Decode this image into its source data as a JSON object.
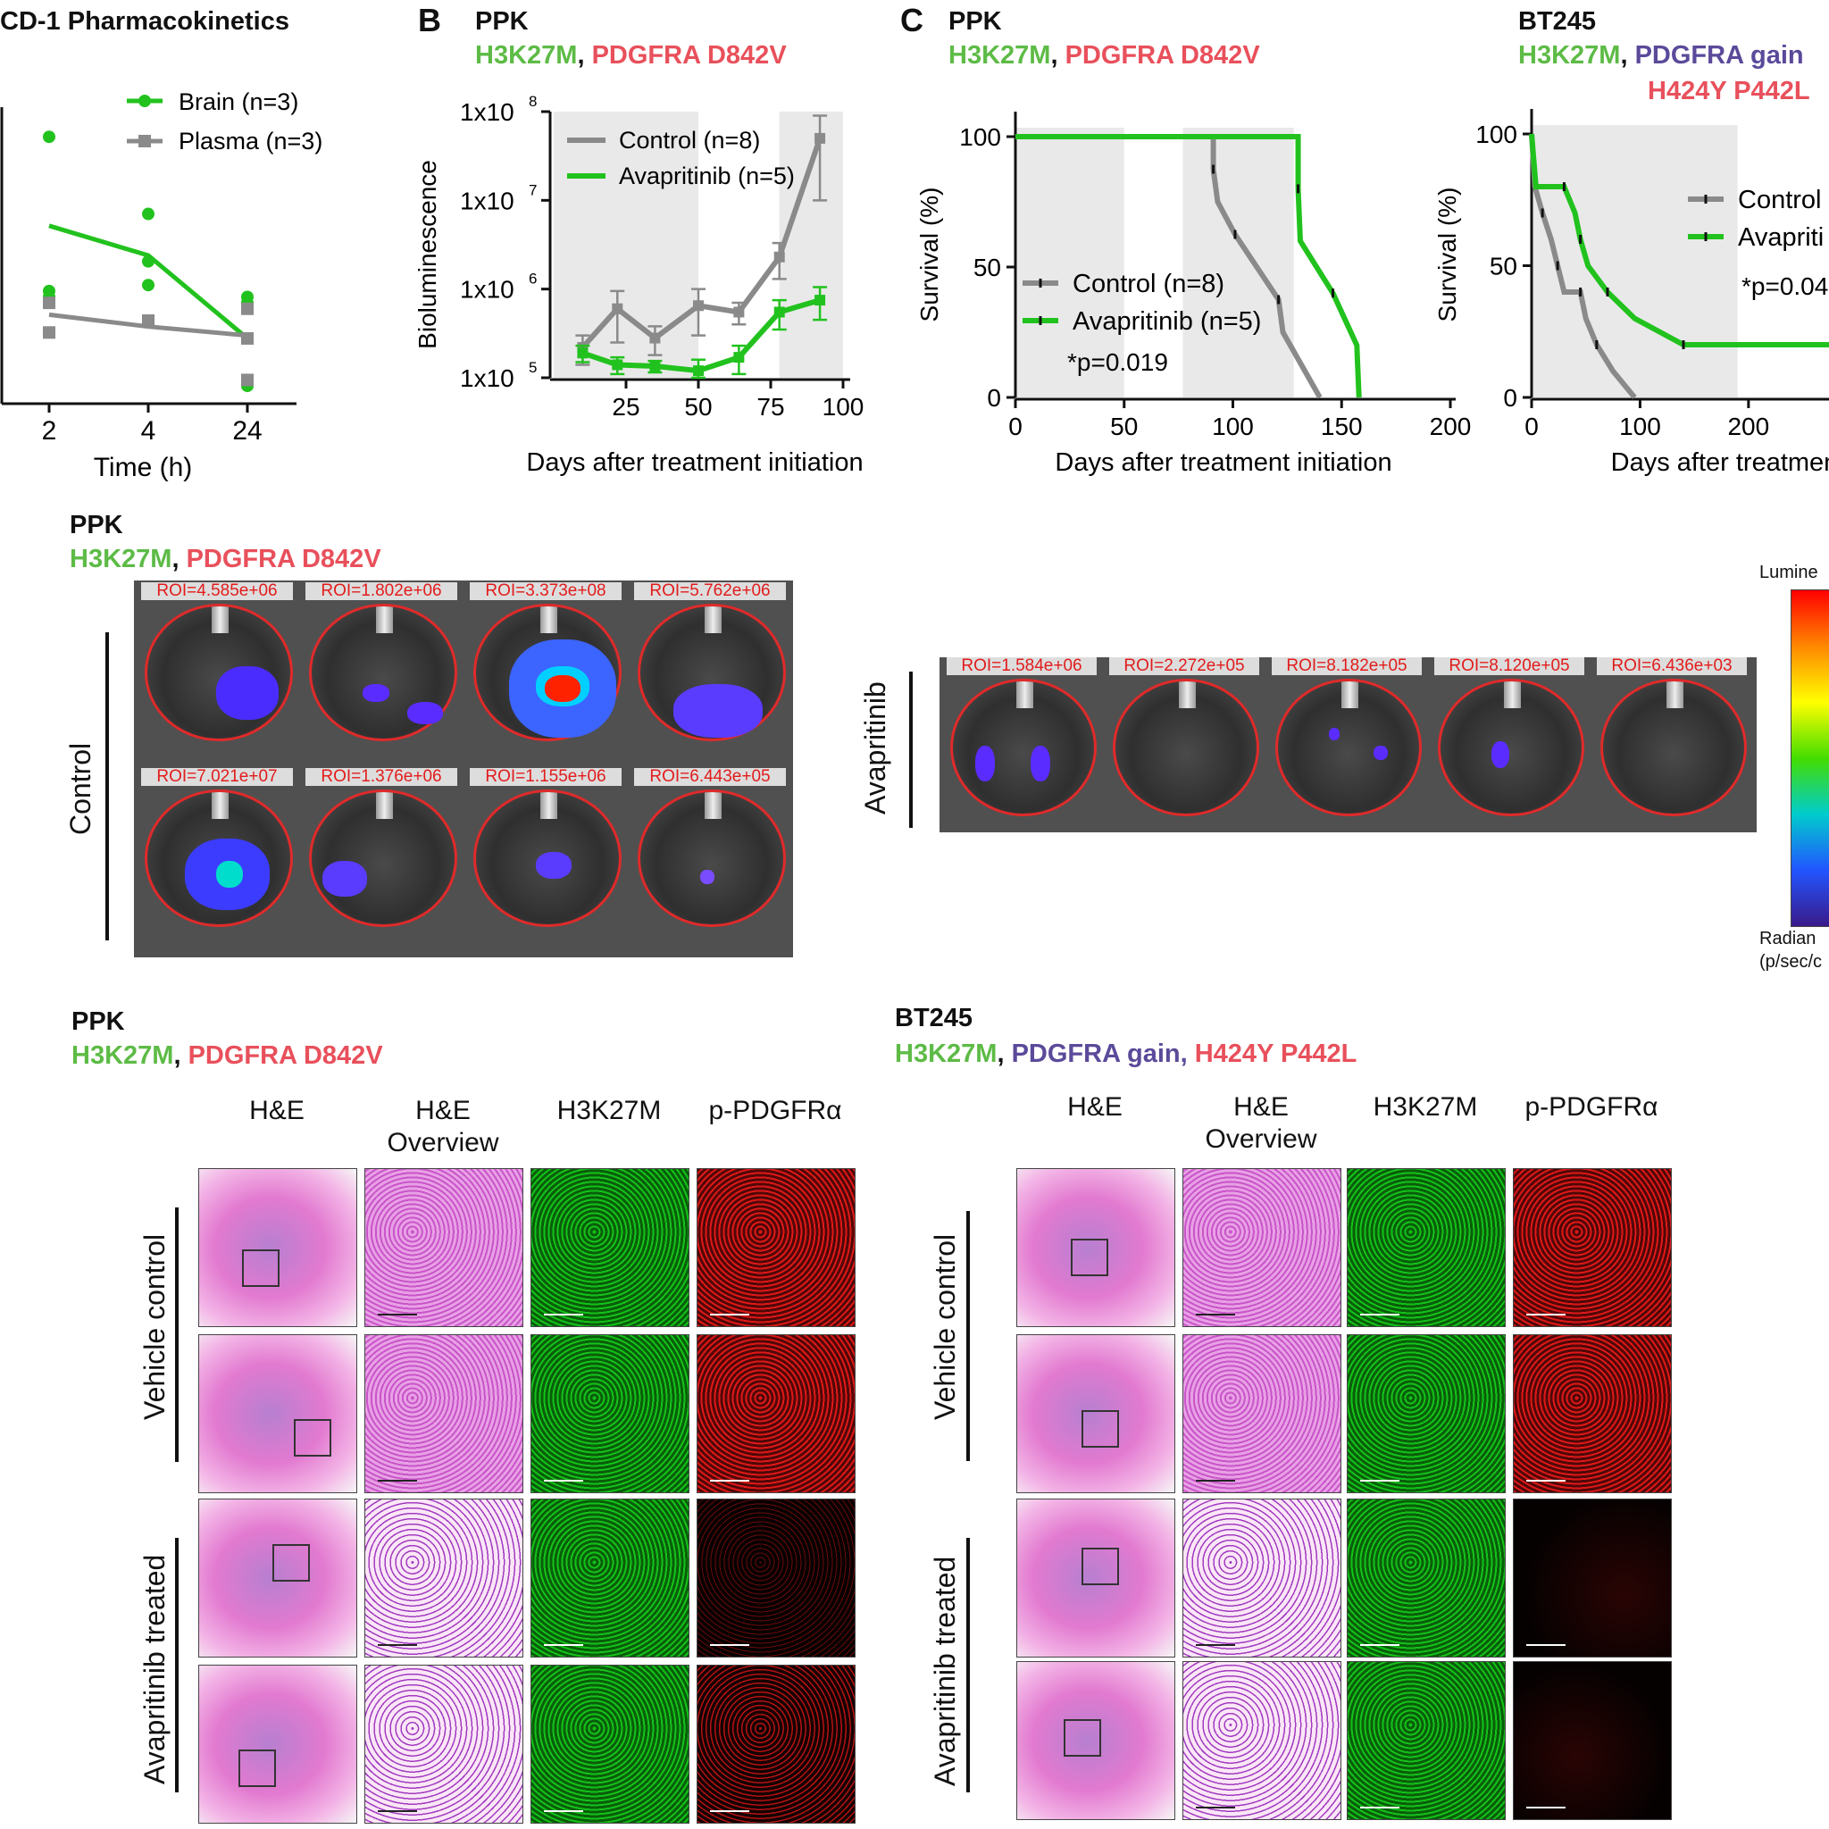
{
  "panelA": {
    "title": "CD-1 Pharmacokinetics",
    "legend": [
      "Brain (n=3)",
      "Plasma (n=3)"
    ],
    "xlabel": "Time (h)",
    "xticks": [
      "2",
      "4",
      "24"
    ]
  },
  "panelB": {
    "letter": "B",
    "model": "PPK",
    "gene1": "H3K27M",
    "sep": ",",
    "gene2": "PDGFRA D842V",
    "ylabel": "Bioluminescence",
    "xlabel": "Days after treatment initiation",
    "xticks": [
      "25",
      "50",
      "75",
      "100"
    ],
    "yticks": [
      {
        "base": "1x10",
        "exp": "5"
      },
      {
        "base": "1x10",
        "exp": "6"
      },
      {
        "base": "1x10",
        "exp": "7"
      },
      {
        "base": "1x10",
        "exp": "8"
      }
    ],
    "legend": [
      "Control (n=8)",
      "Avapritinib (n=5)"
    ]
  },
  "panelC": {
    "letter": "C",
    "model": "PPK",
    "gene1": "H3K27M",
    "sep": ",",
    "gene2": "PDGFRA D842V",
    "ylabel": "Survival (%)",
    "xlabel": "Days after treatment initiation",
    "xticks": [
      "0",
      "50",
      "100",
      "150",
      "200"
    ],
    "yticks": [
      "0",
      "50",
      "100"
    ],
    "legend": [
      "Control (n=8)",
      "Avapritinib (n=5)"
    ],
    "pvalue": "*p=0.019"
  },
  "panelD": {
    "model": "BT245",
    "gene1": "H3K27M",
    "sep": ",",
    "gene2": "PDGFRA gain",
    "gene3": "H424Y P442L",
    "ylabel": "Survival (%)",
    "xlabel": "Days after treatment",
    "xticks": [
      "0",
      "100",
      "200",
      "3"
    ],
    "yticks": [
      "0",
      "50",
      "100"
    ],
    "legend": [
      "Control",
      "Avapriti"
    ],
    "pvalue": "*p=0.04"
  },
  "imaging": {
    "model": "PPK",
    "gene1": "H3K27M",
    "sep": ",",
    "gene2": "PDGFRA D842V",
    "control_label": "Control",
    "treated_label": "Avapritinib",
    "control_rois_row1": [
      "ROI=4.585e+06",
      "ROI=1.802e+06",
      "ROI=3.373e+08",
      "ROI=5.762e+06"
    ],
    "control_rois_row2": [
      "ROI=7.021e+07",
      "ROI=1.376e+06",
      "ROI=1.155e+06",
      "ROI=6.443e+05"
    ],
    "treated_rois": [
      "ROI=1.584e+06",
      "ROI=2.272e+05",
      "ROI=8.182e+05",
      "ROI=8.120e+05",
      "ROI=6.436e+03"
    ],
    "colorbar_top": "Lumine",
    "colorbar_bottom1": "Radian",
    "colorbar_bottom2": "(p/sec/c"
  },
  "histo_left": {
    "model": "PPK",
    "gene1": "H3K27M",
    "sep": ",",
    "gene2": "PDGFRA D842V",
    "headers": [
      "H&E",
      "H&E\nOverview",
      "H3K27M",
      "p-PDGFRα"
    ],
    "vehicle_label": "Vehicle control",
    "treated_label": "Avapritinib treated"
  },
  "histo_right": {
    "model": "BT245",
    "gene1": "H3K27M",
    "sep": ",",
    "gene2": "PDGFRA gain,",
    "gene3": "H424Y P442L",
    "headers": [
      "H&E",
      "H&E\nOverview",
      "H3K27M",
      "p-PDGFRα"
    ],
    "vehicle_label": "Vehicle control",
    "treated_label": "Avapritinib treated"
  },
  "colors": {
    "green": "#22c21e",
    "grey": "#8a8a8a",
    "gene_green": "#5dbb46",
    "gene_red": "#e8505b",
    "gene_purple": "#5b4a9a",
    "shade": "#e9e9e9"
  },
  "chart_data": [
    {
      "id": "A",
      "type": "scatter",
      "title": "CD-1 Pharmacokinetics",
      "xlabel": "Time (h)",
      "x_categories": [
        "2",
        "4",
        "24"
      ],
      "series": [
        {
          "name": "Brain (n=3)",
          "points": [
            [
              0,
              9.5
            ],
            [
              0,
              6.9
            ],
            [
              0,
              6.8
            ],
            [
              1,
              8.2
            ],
            [
              1,
              7.4
            ],
            [
              1,
              7.0
            ],
            [
              2,
              6.8
            ],
            [
              2,
              6.7
            ],
            [
              2,
              5.3
            ]
          ],
          "mean": [
            8.0,
            7.5,
            6.1
          ]
        },
        {
          "name": "Plasma (n=3)",
          "points": [
            [
              0,
              6.7
            ],
            [
              0,
              6.2
            ],
            [
              1,
              6.4
            ],
            [
              1,
              6.4
            ],
            [
              2,
              6.6
            ],
            [
              2,
              6.1
            ],
            [
              2,
              5.4
            ]
          ],
          "mean": [
            6.5,
            6.3,
            6.15
          ]
        }
      ]
    },
    {
      "id": "B",
      "type": "line",
      "xlabel": "Days after treatment initiation",
      "ylabel": "Bioluminescence",
      "log_y": true,
      "ylim": [
        100000,
        100000000
      ],
      "xlim": [
        0,
        100
      ],
      "shaded_x": [
        [
          0,
          50
        ],
        [
          78,
          100
        ]
      ],
      "series": [
        {
          "name": "Control (n=8)",
          "x": [
            10,
            22,
            35,
            50,
            64,
            78,
            92
          ],
          "y": [
            220000,
            600000,
            280000,
            650000,
            550000,
            2300000,
            50000000
          ],
          "err": [
            80000,
            350000,
            100000,
            350000,
            150000,
            1000000,
            40000000
          ]
        },
        {
          "name": "Avapritinib (n=5)",
          "x": [
            10,
            22,
            35,
            50,
            64,
            78,
            92
          ],
          "y": [
            190000,
            140000,
            135000,
            120000,
            170000,
            550000,
            750000
          ],
          "err": [
            40000,
            30000,
            20000,
            40000,
            60000,
            200000,
            300000
          ]
        }
      ]
    },
    {
      "id": "C",
      "type": "line",
      "subtype": "kaplan-meier",
      "xlabel": "Days after treatment initiation",
      "ylabel": "Survival (%)",
      "xlim": [
        0,
        200
      ],
      "ylim": [
        0,
        100
      ],
      "shaded_x": [
        [
          0,
          50
        ],
        [
          77,
          128
        ]
      ],
      "series": [
        {
          "name": "Control (n=8)",
          "steps": [
            [
              0,
              100
            ],
            [
              91,
              100
            ],
            [
              91,
              87.5
            ],
            [
              93,
              75
            ],
            [
              101,
              62.5
            ],
            [
              111,
              50
            ],
            [
              121,
              37.5
            ],
            [
              123,
              25
            ],
            [
              140,
              0
            ]
          ]
        },
        {
          "name": "Avapritinib (n=5)",
          "steps": [
            [
              0,
              100
            ],
            [
              130,
              100
            ],
            [
              130,
              80
            ],
            [
              131,
              60
            ],
            [
              146,
              40
            ],
            [
              157,
              20
            ],
            [
              158,
              0
            ]
          ]
        }
      ],
      "pvalue": "*p=0.019"
    },
    {
      "id": "D",
      "type": "line",
      "subtype": "kaplan-meier",
      "xlabel": "Days after treatment",
      "ylabel": "Survival (%)",
      "xlim": [
        0,
        280
      ],
      "ylim": [
        0,
        100
      ],
      "shaded_x": [
        [
          0,
          190
        ]
      ],
      "series": [
        {
          "name": "Control",
          "steps": [
            [
              0,
              100
            ],
            [
              3,
              80
            ],
            [
              10,
              70
            ],
            [
              18,
              60
            ],
            [
              24,
              50
            ],
            [
              30,
              40
            ],
            [
              45,
              40
            ],
            [
              50,
              30
            ],
            [
              60,
              20
            ],
            [
              75,
              10
            ],
            [
              95,
              0
            ]
          ]
        },
        {
          "name": "Avapriti",
          "steps": [
            [
              0,
              100
            ],
            [
              4,
              80
            ],
            [
              30,
              80
            ],
            [
              40,
              70
            ],
            [
              45,
              60
            ],
            [
              52,
              50
            ],
            [
              70,
              40
            ],
            [
              95,
              30
            ],
            [
              140,
              20
            ],
            [
              280,
              20
            ]
          ]
        }
      ],
      "pvalue": "*p=0.04"
    }
  ]
}
